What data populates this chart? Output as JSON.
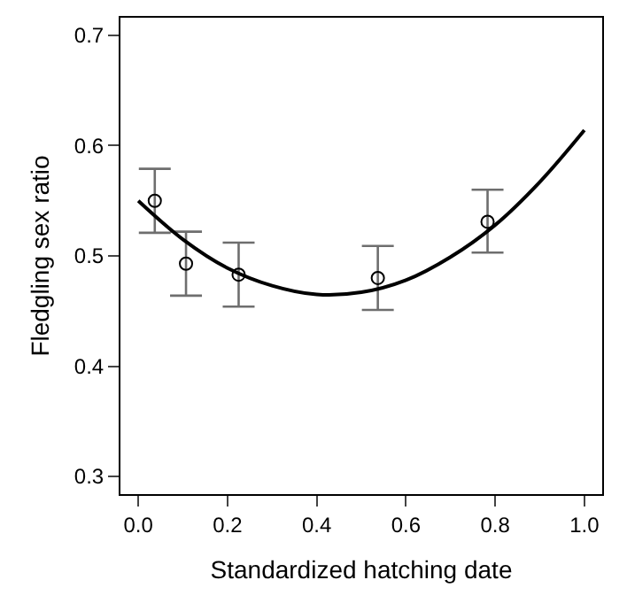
{
  "chart_data": {
    "type": "scatter",
    "xlabel": "Standardized hatching date",
    "ylabel": "Fledgling sex ratio",
    "xlim": [
      -0.04,
      1.04
    ],
    "ylim": [
      0.284,
      0.716
    ],
    "xticks": [
      {
        "value": 0,
        "label": "0.0"
      },
      {
        "value": 0.2,
        "label": "0.2"
      },
      {
        "value": 0.4,
        "label": "0.4"
      },
      {
        "value": 0.6,
        "label": "0.6"
      },
      {
        "value": 0.8,
        "label": "0.8"
      },
      {
        "value": 1,
        "label": "1.0"
      }
    ],
    "yticks": [
      0.3,
      0.4,
      0.5,
      0.6,
      0.7
    ],
    "grid": false,
    "legend": false,
    "series": [
      {
        "type": "scatter",
        "marker": "circle",
        "color": "#000000",
        "x": [
          0.037,
          0.107,
          0.225,
          0.537,
          0.783
        ],
        "values": [
          0.55,
          0.493,
          0.483,
          0.48,
          0.531
        ],
        "errors": [
          [
            0.521,
            0.579
          ],
          [
            0.464,
            0.522
          ],
          [
            0.454,
            0.512
          ],
          [
            0.451,
            0.509
          ],
          [
            0.503,
            0.56
          ]
        ]
      },
      {
        "type": "line",
        "line_style": "solid",
        "color": "#000000",
        "x": [
          0,
          0.1,
          0.2,
          0.3,
          0.4,
          0.5,
          0.6,
          0.7,
          0.8,
          0.9,
          1
        ],
        "values": [
          0.55,
          0.515,
          0.489,
          0.473,
          0.465,
          0.467,
          0.478,
          0.499,
          0.528,
          0.567,
          0.614
        ]
      }
    ]
  }
}
